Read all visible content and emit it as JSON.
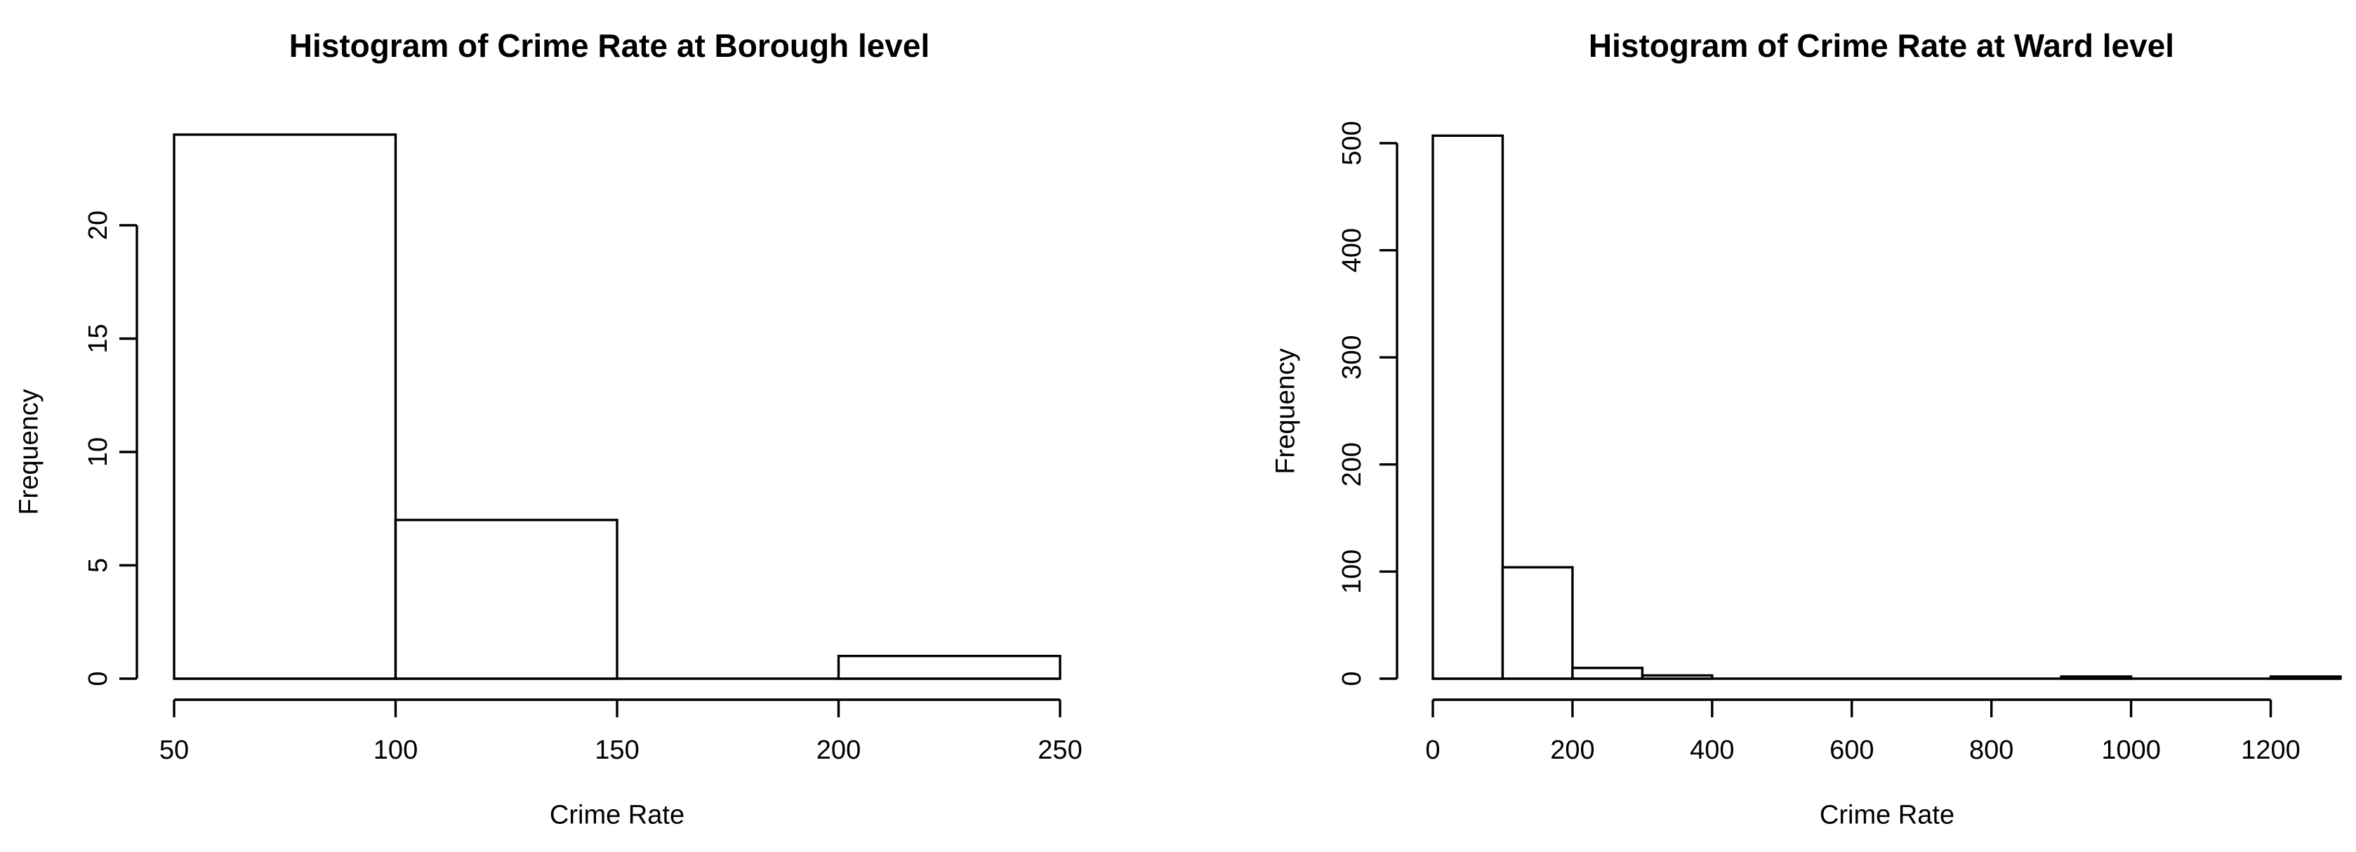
{
  "page": {
    "background": "#ffffff",
    "ink": "#000000"
  },
  "chart_data": [
    {
      "type": "histogram",
      "title": "Histogram of Crime Rate at Borough level",
      "xlabel": "Crime Rate",
      "ylabel": "Frequency",
      "bin_start": 50,
      "bin_width": 50,
      "bin_edges": [
        50,
        100,
        150,
        200,
        250
      ],
      "counts": [
        24,
        7,
        0,
        1
      ],
      "x_ticks": [
        50,
        100,
        150,
        200,
        250
      ],
      "y_ticks": [
        0,
        5,
        10,
        15,
        20
      ],
      "xlim": [
        50,
        250
      ],
      "ylim": [
        0,
        24
      ],
      "grid": false,
      "legend": "none",
      "bar_fill": "#ffffff",
      "bar_stroke": "#000000"
    },
    {
      "type": "histogram",
      "title": "Histogram of Crime Rate at Ward level",
      "xlabel": "Crime Rate",
      "ylabel": "Frequency",
      "bin_start": 0,
      "bin_width": 100,
      "bin_edges": [
        0,
        100,
        200,
        300,
        400,
        500,
        600,
        700,
        800,
        900,
        1000,
        1100,
        1200,
        1300
      ],
      "counts": [
        507,
        104,
        10,
        3,
        0,
        0,
        0,
        0,
        0,
        2,
        0,
        0,
        2
      ],
      "x_ticks": [
        0,
        200,
        400,
        600,
        800,
        1000,
        1200
      ],
      "y_ticks": [
        0,
        100,
        200,
        300,
        400,
        500
      ],
      "xlim": [
        0,
        1300
      ],
      "ylim": [
        0,
        507
      ],
      "grid": false,
      "legend": "none",
      "bar_fill": "#ffffff",
      "bar_stroke": "#000000"
    }
  ]
}
